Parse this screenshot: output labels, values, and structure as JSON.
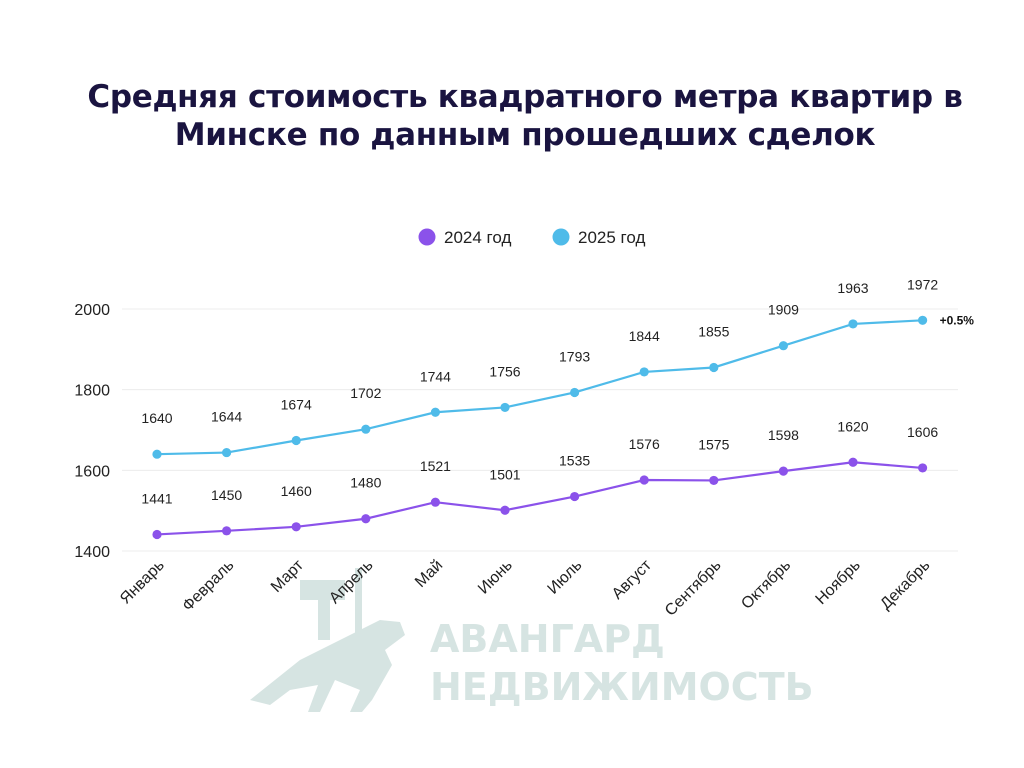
{
  "chart_data": {
    "type": "line",
    "title_lines": [
      "Средняя стоимость квадратного метра квартир в",
      "Минске по данным прошедших сделок"
    ],
    "categories": [
      "Январь",
      "Февраль",
      "Март",
      "Апрель",
      "Май",
      "Июнь",
      "Июль",
      "Август",
      "Сентябрь",
      "Октябрь",
      "Ноябрь",
      "Декабрь"
    ],
    "series": [
      {
        "name": "2024 год",
        "color": "#8b52ea",
        "values": [
          1441,
          1450,
          1460,
          1480,
          1521,
          1501,
          1535,
          1576,
          1575,
          1598,
          1620,
          1606
        ]
      },
      {
        "name": "2025 год",
        "color": "#4fbbe9",
        "values": [
          1640,
          1644,
          1674,
          1702,
          1744,
          1756,
          1793,
          1844,
          1855,
          1909,
          1963,
          1972
        ]
      }
    ],
    "yticks": [
      1400,
      1600,
      1800,
      2000
    ],
    "ylim": [
      1400,
      2000
    ],
    "grid": true,
    "legend_position": "top-center",
    "annotation": {
      "text": "+0.5%",
      "series": 1,
      "index": 11
    }
  },
  "watermark": {
    "line1": "АВАНГАРД",
    "line2": "НЕДВИЖИМОСТЬ",
    "color": "#d6e4e2"
  }
}
